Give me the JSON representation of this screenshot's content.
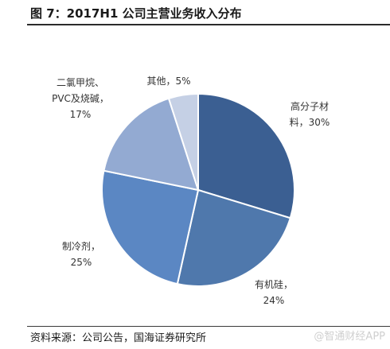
{
  "header": {
    "title": "图 7：2017H1 公司主营业务收入分布"
  },
  "chart_data": {
    "type": "pie",
    "title": "图 7：2017H1 公司主营业务收入分布",
    "slices": [
      {
        "label_lines": [
          "高分子材",
          "料，30%"
        ],
        "name": "高分子材料",
        "value": 30,
        "color": "#3b5f92"
      },
      {
        "label_lines": [
          "有机硅，",
          "24%"
        ],
        "name": "有机硅",
        "value": 24,
        "color": "#4f78ac"
      },
      {
        "label_lines": [
          "制冷剂，",
          "25%"
        ],
        "name": "制冷剂",
        "value": 25,
        "color": "#5b87c3"
      },
      {
        "label_lines": [
          "二氯甲烷、",
          "PVC及烧碱，",
          "17%"
        ],
        "name": "二氯甲烷、PVC及烧碱",
        "value": 17,
        "color": "#93aad2"
      },
      {
        "label_lines": [
          "其他，5%"
        ],
        "name": "其他",
        "value": 5,
        "color": "#c5d0e5"
      }
    ],
    "start_angle_deg": 0,
    "direction": "clockwise",
    "legend": "none"
  },
  "footer": {
    "source": "资料来源：公司公告，国海证券研究所",
    "watermark": "@智通财经APP"
  }
}
